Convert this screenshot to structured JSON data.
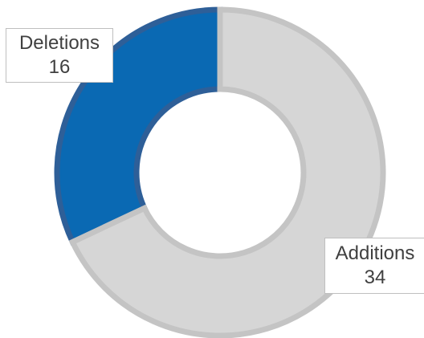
{
  "chart_data": {
    "type": "pie",
    "subtype": "doughnut",
    "title": "",
    "slices": [
      {
        "label": "Deletions",
        "value": 16,
        "color": "#0a69b3",
        "border": "#2e5f98"
      },
      {
        "label": "Additions",
        "value": 34,
        "color": "#d6d6d6",
        "border": "#c4c4c4"
      }
    ],
    "data_labels": [
      {
        "category": "Deletions",
        "value": "16"
      },
      {
        "category": "Additions",
        "value": "34"
      }
    ],
    "start_angle": "12 o'clock",
    "direction": "counterclockwise",
    "legend": "none"
  }
}
